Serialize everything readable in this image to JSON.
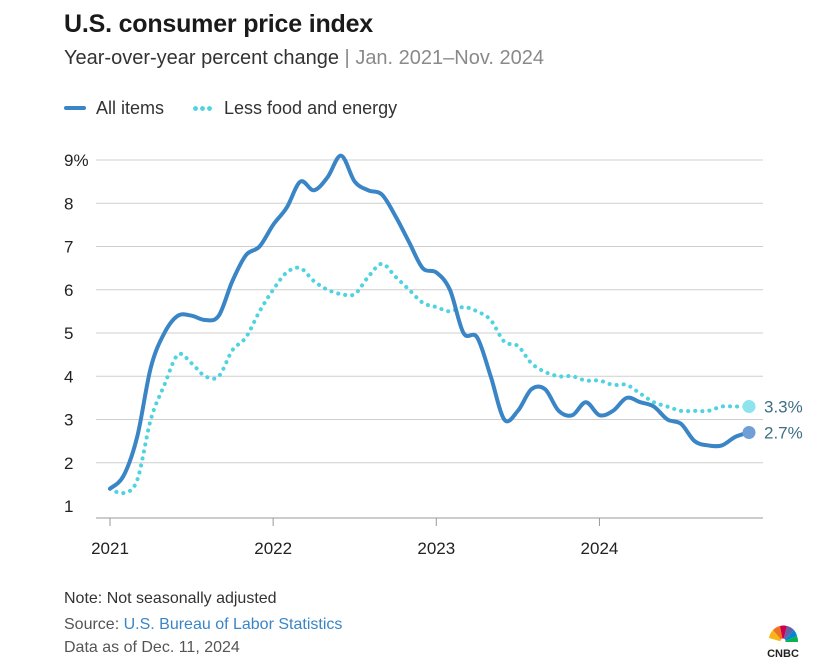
{
  "title": "U.S. consumer price index",
  "subtitle": {
    "main": "Year-over-year percent change",
    "separator": "|",
    "range": "Jan. 2021–Nov. 2024"
  },
  "legend": {
    "series_all": "All items",
    "series_core": "Less food and energy"
  },
  "footer": {
    "note": "Note: Not seasonally adjusted",
    "source_prefix": "Source: ",
    "source_link": "U.S. Bureau of Labor Statistics",
    "as_of": "Data as of Dec. 11, 2024"
  },
  "logo_text": "CNBC",
  "colors": {
    "all_items": "#3a85c6",
    "core": "#4fd3e0",
    "grid": "#cfcfcf",
    "axis": "#555555"
  },
  "chart_data": {
    "type": "line",
    "title": "U.S. consumer price index",
    "ylabel": "Year-over-year percent change",
    "ylim": [
      1,
      9
    ],
    "yticks": [
      {
        "value": 9,
        "label": "9%"
      },
      {
        "value": 8,
        "label": "8"
      },
      {
        "value": 7,
        "label": "7"
      },
      {
        "value": 6,
        "label": "6"
      },
      {
        "value": 5,
        "label": "5"
      },
      {
        "value": 4,
        "label": "4"
      },
      {
        "value": 3,
        "label": "3"
      },
      {
        "value": 2,
        "label": "2"
      },
      {
        "value": 1,
        "label": "1"
      }
    ],
    "xlim": [
      0,
      47
    ],
    "xticks": [
      {
        "value": 0,
        "label": "2021"
      },
      {
        "value": 12,
        "label": "2022"
      },
      {
        "value": 24,
        "label": "2023"
      },
      {
        "value": 36,
        "label": "2024"
      }
    ],
    "x_unit": "months since Jan. 2021",
    "series": [
      {
        "name": "All items",
        "style": "solid",
        "end_label": "2.7%",
        "values": [
          1.4,
          1.7,
          2.6,
          4.2,
          5.0,
          5.4,
          5.4,
          5.3,
          5.4,
          6.2,
          6.8,
          7.0,
          7.5,
          7.9,
          8.5,
          8.3,
          8.6,
          9.1,
          8.5,
          8.3,
          8.2,
          7.7,
          7.1,
          6.5,
          6.4,
          6.0,
          5.0,
          4.9,
          4.0,
          3.0,
          3.2,
          3.7,
          3.7,
          3.2,
          3.1,
          3.4,
          3.1,
          3.2,
          3.5,
          3.4,
          3.3,
          3.0,
          2.9,
          2.5,
          2.4,
          2.4,
          2.6,
          2.7
        ]
      },
      {
        "name": "Less food and energy",
        "style": "dotted",
        "end_label": "3.3%",
        "values": [
          1.4,
          1.3,
          1.6,
          3.0,
          3.8,
          4.5,
          4.3,
          4.0,
          4.0,
          4.6,
          4.9,
          5.5,
          6.0,
          6.4,
          6.5,
          6.2,
          6.0,
          5.9,
          5.9,
          6.3,
          6.6,
          6.3,
          6.0,
          5.7,
          5.6,
          5.5,
          5.6,
          5.5,
          5.3,
          4.8,
          4.7,
          4.3,
          4.1,
          4.0,
          4.0,
          3.9,
          3.9,
          3.8,
          3.8,
          3.6,
          3.4,
          3.3,
          3.2,
          3.2,
          3.2,
          3.3,
          3.3,
          3.3
        ]
      }
    ]
  }
}
